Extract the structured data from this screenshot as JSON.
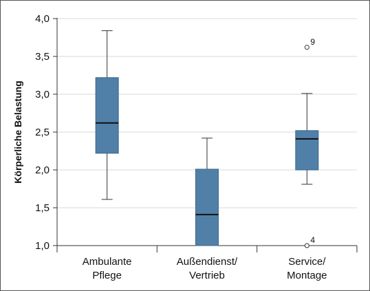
{
  "chart_data": {
    "type": "boxplot",
    "ylabel": "Körperliche Belastung",
    "ylim": [
      1.0,
      4.0
    ],
    "yticks": [
      {
        "value": 1.0,
        "label": "1,0"
      },
      {
        "value": 1.5,
        "label": "1,5"
      },
      {
        "value": 2.0,
        "label": "2,0"
      },
      {
        "value": 2.5,
        "label": "2,5"
      },
      {
        "value": 3.0,
        "label": "3,0"
      },
      {
        "value": 3.5,
        "label": "3,5"
      },
      {
        "value": 4.0,
        "label": "4,0"
      }
    ],
    "grid": true,
    "box_color": "#5080a8",
    "categories": [
      {
        "lines": [
          "Ambulante",
          "Pflege"
        ],
        "whisker_low": 1.61,
        "q1": 2.22,
        "median": 2.62,
        "q3": 3.22,
        "whisker_high": 3.84,
        "outliers": []
      },
      {
        "lines": [
          "Außendienst/",
          "Vertrieb"
        ],
        "whisker_low": 1.0,
        "q1": 1.0,
        "median": 1.41,
        "q3": 2.01,
        "whisker_high": 2.42,
        "outliers": []
      },
      {
        "lines": [
          "Service/",
          "Montage"
        ],
        "whisker_low": 1.81,
        "q1": 2.0,
        "median": 2.41,
        "q3": 2.52,
        "whisker_high": 3.01,
        "outliers": [
          {
            "value": 3.62,
            "label": "9"
          },
          {
            "value": 1.0,
            "label": "4"
          }
        ]
      }
    ]
  }
}
